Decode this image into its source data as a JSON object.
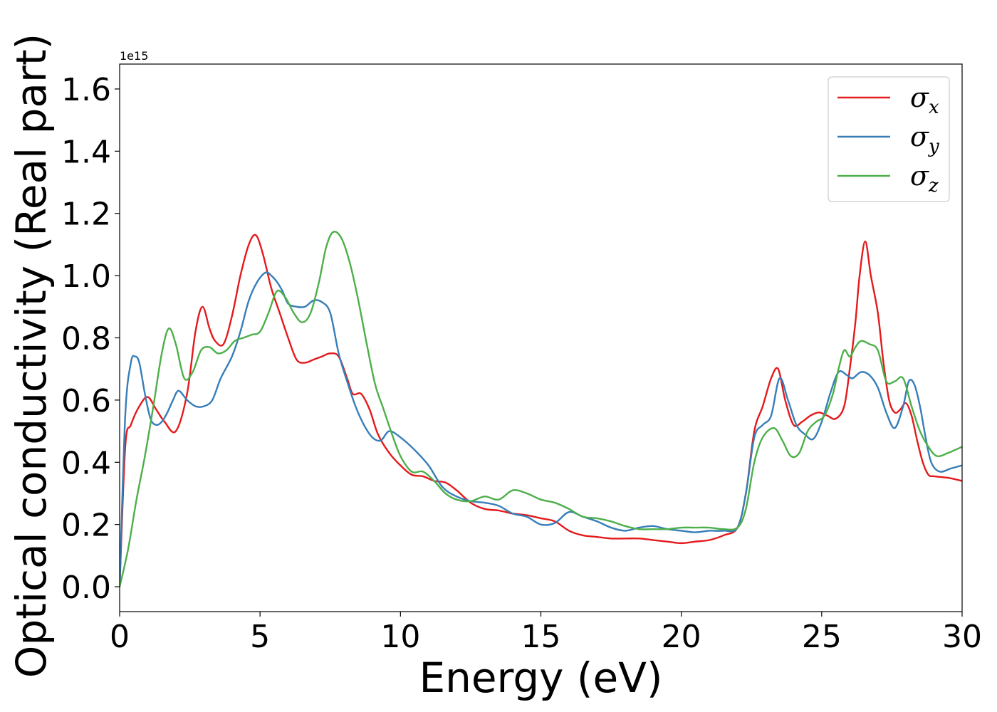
{
  "chart_data": {
    "type": "line",
    "title": "",
    "xlabel": "Energy (eV)",
    "ylabel": "Optical conductivity (Real part)",
    "y_offset_label": "1e15",
    "xlim": [
      0,
      30
    ],
    "ylim": [
      -0.08,
      1.68
    ],
    "x_ticks": [
      0,
      5,
      10,
      15,
      20,
      25,
      30
    ],
    "x_tick_labels": [
      "0",
      "5",
      "10",
      "15",
      "20",
      "25",
      "30"
    ],
    "y_ticks": [
      0.0,
      0.2,
      0.4,
      0.6,
      0.8,
      1.0,
      1.2,
      1.4,
      1.6
    ],
    "y_tick_labels": [
      "0.0",
      "0.2",
      "0.4",
      "0.6",
      "0.8",
      "1.0",
      "1.2",
      "1.4",
      "1.6"
    ],
    "grid": false,
    "legend_position": "top-right",
    "series": [
      {
        "name": "σx",
        "symbol": "σ",
        "subscript": "x",
        "color": "#e41a1c",
        "x": [
          0,
          0.2,
          0.4,
          0.7,
          1.0,
          1.3,
          1.6,
          2.0,
          2.4,
          2.7,
          2.95,
          3.2,
          3.4,
          3.7,
          4.0,
          4.3,
          4.6,
          4.85,
          5.1,
          5.4,
          5.7,
          6.0,
          6.3,
          6.6,
          6.9,
          7.2,
          7.5,
          7.8,
          8.1,
          8.3,
          8.6,
          8.9,
          9.2,
          9.6,
          10.0,
          10.4,
          10.8,
          11.2,
          11.6,
          12.0,
          12.5,
          13.0,
          13.5,
          14.0,
          14.5,
          15.0,
          15.5,
          16.0,
          16.5,
          17.0,
          17.5,
          18.0,
          18.5,
          19.0,
          19.5,
          20.0,
          20.5,
          21.0,
          21.5,
          22.0,
          22.3,
          22.6,
          22.9,
          23.2,
          23.45,
          23.7,
          24.0,
          24.3,
          24.6,
          24.9,
          25.2,
          25.5,
          25.8,
          26.0,
          26.2,
          26.35,
          26.55,
          26.75,
          27.0,
          27.2,
          27.4,
          27.6,
          27.8,
          28.0,
          28.2,
          28.4,
          28.6,
          28.8,
          29.0,
          29.5,
          30.0
        ],
        "y": [
          0.0,
          0.45,
          0.52,
          0.58,
          0.61,
          0.57,
          0.53,
          0.5,
          0.62,
          0.82,
          0.9,
          0.83,
          0.79,
          0.78,
          0.87,
          1.0,
          1.1,
          1.13,
          1.07,
          0.96,
          0.88,
          0.8,
          0.73,
          0.72,
          0.73,
          0.74,
          0.75,
          0.74,
          0.67,
          0.62,
          0.62,
          0.57,
          0.49,
          0.43,
          0.39,
          0.36,
          0.355,
          0.34,
          0.335,
          0.31,
          0.27,
          0.25,
          0.245,
          0.235,
          0.23,
          0.22,
          0.21,
          0.18,
          0.165,
          0.16,
          0.155,
          0.155,
          0.155,
          0.15,
          0.145,
          0.14,
          0.145,
          0.15,
          0.165,
          0.19,
          0.3,
          0.5,
          0.58,
          0.67,
          0.7,
          0.6,
          0.52,
          0.53,
          0.55,
          0.56,
          0.55,
          0.54,
          0.58,
          0.7,
          0.85,
          1.0,
          1.11,
          1.0,
          0.88,
          0.72,
          0.6,
          0.56,
          0.57,
          0.59,
          0.55,
          0.47,
          0.4,
          0.36,
          0.355,
          0.35,
          0.34
        ]
      },
      {
        "name": "σy",
        "symbol": "σ",
        "subscript": "y",
        "color": "#377eb8",
        "x": [
          0,
          0.2,
          0.4,
          0.55,
          0.7,
          0.9,
          1.1,
          1.3,
          1.5,
          1.7,
          1.9,
          2.1,
          2.4,
          2.7,
          3.0,
          3.3,
          3.6,
          4.0,
          4.3,
          4.6,
          4.9,
          5.2,
          5.4,
          5.6,
          5.8,
          6.0,
          6.3,
          6.6,
          6.9,
          7.2,
          7.5,
          7.8,
          8.1,
          8.4,
          8.7,
          9.0,
          9.3,
          9.6,
          10.0,
          10.5,
          11.0,
          11.5,
          12.0,
          12.5,
          13.0,
          13.5,
          14.0,
          14.5,
          15.0,
          15.5,
          16.0,
          16.5,
          17.0,
          17.5,
          18.0,
          18.5,
          19.0,
          19.5,
          20.0,
          20.5,
          21.0,
          21.5,
          22.0,
          22.3,
          22.6,
          22.9,
          23.2,
          23.5,
          23.8,
          24.1,
          24.4,
          24.7,
          25.0,
          25.3,
          25.6,
          25.9,
          26.1,
          26.4,
          26.7,
          27.0,
          27.3,
          27.6,
          27.9,
          28.1,
          28.3,
          28.5,
          28.7,
          28.9,
          29.2,
          29.6,
          30.0
        ],
        "y": [
          0.0,
          0.55,
          0.72,
          0.74,
          0.72,
          0.62,
          0.54,
          0.52,
          0.53,
          0.56,
          0.6,
          0.63,
          0.6,
          0.58,
          0.58,
          0.6,
          0.67,
          0.74,
          0.82,
          0.92,
          0.98,
          1.01,
          1.0,
          0.98,
          0.95,
          0.91,
          0.9,
          0.9,
          0.92,
          0.915,
          0.88,
          0.75,
          0.66,
          0.58,
          0.52,
          0.48,
          0.47,
          0.5,
          0.48,
          0.44,
          0.39,
          0.32,
          0.29,
          0.275,
          0.27,
          0.26,
          0.235,
          0.225,
          0.2,
          0.205,
          0.24,
          0.225,
          0.21,
          0.19,
          0.18,
          0.19,
          0.195,
          0.185,
          0.18,
          0.175,
          0.18,
          0.18,
          0.19,
          0.3,
          0.48,
          0.52,
          0.55,
          0.67,
          0.6,
          0.52,
          0.49,
          0.475,
          0.53,
          0.62,
          0.69,
          0.68,
          0.67,
          0.69,
          0.68,
          0.64,
          0.56,
          0.51,
          0.58,
          0.66,
          0.65,
          0.58,
          0.48,
          0.4,
          0.37,
          0.38,
          0.39
        ]
      },
      {
        "name": "σz",
        "symbol": "σ",
        "subscript": "z",
        "color": "#4daf4a",
        "x": [
          0,
          0.3,
          0.6,
          0.9,
          1.2,
          1.5,
          1.75,
          2.0,
          2.3,
          2.6,
          2.9,
          3.2,
          3.5,
          3.8,
          4.1,
          4.4,
          4.7,
          5.0,
          5.3,
          5.6,
          5.9,
          6.2,
          6.5,
          6.8,
          7.1,
          7.35,
          7.6,
          7.9,
          8.2,
          8.5,
          8.8,
          9.1,
          9.4,
          9.7,
          10.0,
          10.4,
          10.8,
          11.2,
          11.6,
          12.0,
          12.5,
          13.0,
          13.5,
          14.0,
          14.5,
          15.0,
          15.5,
          16.0,
          16.5,
          17.0,
          17.5,
          18.0,
          18.5,
          19.0,
          19.5,
          20.0,
          20.5,
          21.0,
          21.5,
          22.0,
          22.3,
          22.6,
          22.9,
          23.3,
          23.6,
          23.9,
          24.2,
          24.5,
          24.8,
          25.1,
          25.4,
          25.6,
          25.8,
          26.0,
          26.2,
          26.4,
          26.7,
          27.0,
          27.3,
          27.6,
          27.9,
          28.2,
          28.5,
          28.8,
          29.1,
          29.5,
          30.0
        ],
        "y": [
          0.0,
          0.12,
          0.28,
          0.42,
          0.58,
          0.75,
          0.83,
          0.78,
          0.67,
          0.69,
          0.76,
          0.77,
          0.75,
          0.76,
          0.79,
          0.8,
          0.81,
          0.82,
          0.88,
          0.95,
          0.93,
          0.88,
          0.85,
          0.88,
          0.98,
          1.09,
          1.14,
          1.12,
          1.04,
          0.92,
          0.78,
          0.65,
          0.57,
          0.49,
          0.42,
          0.37,
          0.37,
          0.34,
          0.3,
          0.28,
          0.275,
          0.29,
          0.28,
          0.31,
          0.3,
          0.28,
          0.27,
          0.25,
          0.225,
          0.22,
          0.21,
          0.195,
          0.185,
          0.185,
          0.185,
          0.19,
          0.19,
          0.19,
          0.185,
          0.19,
          0.25,
          0.4,
          0.48,
          0.51,
          0.47,
          0.42,
          0.43,
          0.5,
          0.53,
          0.55,
          0.62,
          0.7,
          0.76,
          0.74,
          0.77,
          0.79,
          0.78,
          0.76,
          0.66,
          0.66,
          0.67,
          0.58,
          0.5,
          0.45,
          0.42,
          0.43,
          0.45
        ]
      }
    ]
  }
}
